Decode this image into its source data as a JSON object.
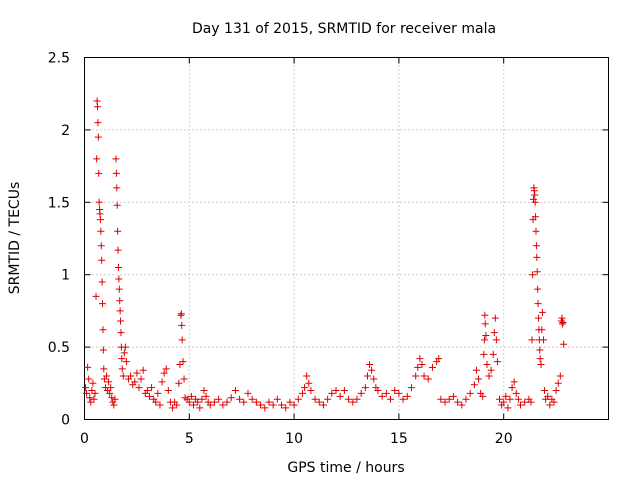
{
  "chart_data": {
    "type": "scatter",
    "title": "Day 131 of 2015, SRMTID for receiver mala",
    "xlabel": "GPS time / hours",
    "ylabel": "SRMTID / TECUs",
    "xlim": [
      0,
      25
    ],
    "ylim": [
      0,
      2.5
    ],
    "x_ticks": [
      0,
      5,
      10,
      15,
      20
    ],
    "x_tick_labels": [
      "0",
      "5",
      "10",
      "15",
      "20"
    ],
    "y_ticks": [
      0,
      0.5,
      1,
      1.5,
      2,
      2.5
    ],
    "y_tick_labels": [
      "0",
      "0.5",
      "1",
      "1.5",
      "2",
      "2.5"
    ],
    "grid": true,
    "marker": "plus",
    "marker_color": "#e00000",
    "series": [
      {
        "name": "SRMTID",
        "points": [
          [
            0.05,
            0.22
          ],
          [
            0.1,
            0.18
          ],
          [
            0.15,
            0.36
          ],
          [
            0.2,
            0.28
          ],
          [
            0.25,
            0.15
          ],
          [
            0.3,
            0.12
          ],
          [
            0.35,
            0.2
          ],
          [
            0.4,
            0.25
          ],
          [
            0.45,
            0.14
          ],
          [
            0.5,
            0.18
          ],
          [
            0.55,
            0.85
          ],
          [
            0.58,
            1.8
          ],
          [
            0.6,
            2.2
          ],
          [
            0.62,
            2.16
          ],
          [
            0.64,
            2.05
          ],
          [
            0.66,
            1.95
          ],
          [
            0.68,
            1.7
          ],
          [
            0.7,
            1.5
          ],
          [
            0.72,
            1.45
          ],
          [
            0.74,
            1.42
          ],
          [
            0.76,
            1.38
          ],
          [
            0.78,
            1.3
          ],
          [
            0.8,
            1.2
          ],
          [
            0.82,
            1.1
          ],
          [
            0.84,
            0.95
          ],
          [
            0.86,
            0.8
          ],
          [
            0.88,
            0.62
          ],
          [
            0.9,
            0.48
          ],
          [
            0.92,
            0.35
          ],
          [
            0.95,
            0.28
          ],
          [
            1.0,
            0.22
          ],
          [
            1.05,
            0.3
          ],
          [
            1.1,
            0.2
          ],
          [
            1.15,
            0.26
          ],
          [
            1.2,
            0.18
          ],
          [
            1.25,
            0.22
          ],
          [
            1.3,
            0.15
          ],
          [
            1.35,
            0.12
          ],
          [
            1.4,
            0.1
          ],
          [
            1.45,
            0.14
          ],
          [
            1.5,
            1.8
          ],
          [
            1.52,
            1.7
          ],
          [
            1.54,
            1.6
          ],
          [
            1.56,
            1.48
          ],
          [
            1.58,
            1.3
          ],
          [
            1.6,
            1.17
          ],
          [
            1.62,
            1.05
          ],
          [
            1.64,
            0.97
          ],
          [
            1.66,
            0.9
          ],
          [
            1.68,
            0.82
          ],
          [
            1.7,
            0.75
          ],
          [
            1.72,
            0.68
          ],
          [
            1.74,
            0.6
          ],
          [
            1.76,
            0.5
          ],
          [
            1.78,
            0.42
          ],
          [
            1.8,
            0.35
          ],
          [
            1.85,
            0.3
          ],
          [
            1.9,
            0.46
          ],
          [
            1.95,
            0.5
          ],
          [
            2.0,
            0.4
          ],
          [
            2.1,
            0.28
          ],
          [
            2.2,
            0.3
          ],
          [
            2.3,
            0.24
          ],
          [
            2.4,
            0.26
          ],
          [
            2.5,
            0.32
          ],
          [
            2.6,
            0.22
          ],
          [
            2.7,
            0.28
          ],
          [
            2.8,
            0.34
          ],
          [
            2.9,
            0.18
          ],
          [
            3.0,
            0.2
          ],
          [
            3.1,
            0.16
          ],
          [
            3.2,
            0.22
          ],
          [
            3.3,
            0.14
          ],
          [
            3.4,
            0.12
          ],
          [
            3.5,
            0.18
          ],
          [
            3.6,
            0.1
          ],
          [
            3.7,
            0.26
          ],
          [
            3.8,
            0.32
          ],
          [
            3.9,
            0.35
          ],
          [
            4.0,
            0.2
          ],
          [
            4.1,
            0.12
          ],
          [
            4.2,
            0.08
          ],
          [
            4.3,
            0.12
          ],
          [
            4.4,
            0.1
          ],
          [
            4.5,
            0.25
          ],
          [
            4.55,
            0.38
          ],
          [
            4.6,
            0.72
          ],
          [
            4.62,
            0.73
          ],
          [
            4.64,
            0.65
          ],
          [
            4.66,
            0.55
          ],
          [
            4.7,
            0.4
          ],
          [
            4.75,
            0.28
          ],
          [
            4.8,
            0.15
          ],
          [
            4.9,
            0.14
          ],
          [
            5.0,
            0.12
          ],
          [
            5.1,
            0.16
          ],
          [
            5.2,
            0.1
          ],
          [
            5.3,
            0.14
          ],
          [
            5.4,
            0.12
          ],
          [
            5.5,
            0.08
          ],
          [
            5.6,
            0.14
          ],
          [
            5.7,
            0.2
          ],
          [
            5.8,
            0.16
          ],
          [
            5.9,
            0.12
          ],
          [
            6.0,
            0.1
          ],
          [
            6.2,
            0.12
          ],
          [
            6.4,
            0.14
          ],
          [
            6.6,
            0.1
          ],
          [
            6.8,
            0.12
          ],
          [
            7.0,
            0.15
          ],
          [
            7.2,
            0.2
          ],
          [
            7.4,
            0.14
          ],
          [
            7.6,
            0.12
          ],
          [
            7.8,
            0.18
          ],
          [
            8.0,
            0.14
          ],
          [
            8.2,
            0.12
          ],
          [
            8.4,
            0.1
          ],
          [
            8.6,
            0.08
          ],
          [
            8.8,
            0.12
          ],
          [
            9.0,
            0.1
          ],
          [
            9.2,
            0.14
          ],
          [
            9.4,
            0.1
          ],
          [
            9.6,
            0.08
          ],
          [
            9.8,
            0.12
          ],
          [
            10.0,
            0.1
          ],
          [
            10.2,
            0.14
          ],
          [
            10.4,
            0.18
          ],
          [
            10.5,
            0.22
          ],
          [
            10.6,
            0.3
          ],
          [
            10.7,
            0.25
          ],
          [
            10.8,
            0.2
          ],
          [
            11.0,
            0.14
          ],
          [
            11.2,
            0.12
          ],
          [
            11.4,
            0.1
          ],
          [
            11.6,
            0.14
          ],
          [
            11.8,
            0.18
          ],
          [
            12.0,
            0.2
          ],
          [
            12.2,
            0.16
          ],
          [
            12.4,
            0.2
          ],
          [
            12.6,
            0.14
          ],
          [
            12.8,
            0.12
          ],
          [
            13.0,
            0.14
          ],
          [
            13.2,
            0.18
          ],
          [
            13.4,
            0.22
          ],
          [
            13.5,
            0.3
          ],
          [
            13.6,
            0.38
          ],
          [
            13.7,
            0.34
          ],
          [
            13.8,
            0.28
          ],
          [
            13.9,
            0.22
          ],
          [
            14.0,
            0.2
          ],
          [
            14.2,
            0.16
          ],
          [
            14.4,
            0.18
          ],
          [
            14.6,
            0.14
          ],
          [
            14.8,
            0.2
          ],
          [
            15.0,
            0.18
          ],
          [
            15.2,
            0.14
          ],
          [
            15.4,
            0.16
          ],
          [
            15.6,
            0.22
          ],
          [
            15.8,
            0.3
          ],
          [
            15.9,
            0.36
          ],
          [
            16.0,
            0.42
          ],
          [
            16.1,
            0.38
          ],
          [
            16.2,
            0.3
          ],
          [
            16.4,
            0.28
          ],
          [
            16.6,
            0.36
          ],
          [
            16.8,
            0.4
          ],
          [
            16.9,
            0.42
          ],
          [
            17.0,
            0.14
          ],
          [
            17.2,
            0.12
          ],
          [
            17.4,
            0.14
          ],
          [
            17.6,
            0.16
          ],
          [
            17.8,
            0.12
          ],
          [
            18.0,
            0.1
          ],
          [
            18.2,
            0.14
          ],
          [
            18.4,
            0.18
          ],
          [
            18.6,
            0.24
          ],
          [
            18.7,
            0.34
          ],
          [
            18.8,
            0.28
          ],
          [
            18.9,
            0.18
          ],
          [
            19.0,
            0.16
          ],
          [
            19.05,
            0.45
          ],
          [
            19.08,
            0.55
          ],
          [
            19.1,
            0.72
          ],
          [
            19.12,
            0.66
          ],
          [
            19.15,
            0.58
          ],
          [
            19.2,
            0.38
          ],
          [
            19.3,
            0.3
          ],
          [
            19.4,
            0.34
          ],
          [
            19.5,
            0.45
          ],
          [
            19.55,
            0.6
          ],
          [
            19.6,
            0.7
          ],
          [
            19.65,
            0.55
          ],
          [
            19.7,
            0.4
          ],
          [
            19.8,
            0.14
          ],
          [
            19.9,
            0.1
          ],
          [
            20.0,
            0.12
          ],
          [
            20.1,
            0.16
          ],
          [
            20.2,
            0.08
          ],
          [
            20.3,
            0.14
          ],
          [
            20.4,
            0.22
          ],
          [
            20.5,
            0.26
          ],
          [
            20.6,
            0.18
          ],
          [
            20.7,
            0.14
          ],
          [
            20.8,
            0.1
          ],
          [
            21.0,
            0.12
          ],
          [
            21.2,
            0.14
          ],
          [
            21.3,
            0.12
          ],
          [
            21.35,
            0.55
          ],
          [
            21.38,
            1.0
          ],
          [
            21.4,
            1.38
          ],
          [
            21.42,
            1.52
          ],
          [
            21.44,
            1.6
          ],
          [
            21.46,
            1.58
          ],
          [
            21.48,
            1.55
          ],
          [
            21.5,
            1.5
          ],
          [
            21.52,
            1.4
          ],
          [
            21.54,
            1.3
          ],
          [
            21.56,
            1.2
          ],
          [
            21.58,
            1.12
          ],
          [
            21.6,
            1.02
          ],
          [
            21.62,
            0.9
          ],
          [
            21.64,
            0.8
          ],
          [
            21.66,
            0.7
          ],
          [
            21.68,
            0.62
          ],
          [
            21.7,
            0.55
          ],
          [
            21.72,
            0.48
          ],
          [
            21.74,
            0.42
          ],
          [
            21.78,
            0.38
          ],
          [
            21.82,
            0.62
          ],
          [
            21.85,
            0.74
          ],
          [
            21.9,
            0.55
          ],
          [
            21.95,
            0.2
          ],
          [
            22.0,
            0.14
          ],
          [
            22.1,
            0.16
          ],
          [
            22.2,
            0.1
          ],
          [
            22.3,
            0.14
          ],
          [
            22.4,
            0.12
          ],
          [
            22.5,
            0.2
          ],
          [
            22.6,
            0.25
          ],
          [
            22.7,
            0.3
          ],
          [
            22.75,
            0.68
          ],
          [
            22.78,
            0.7
          ],
          [
            22.8,
            0.66
          ],
          [
            22.83,
            0.67
          ],
          [
            22.86,
            0.52
          ]
        ]
      }
    ]
  }
}
